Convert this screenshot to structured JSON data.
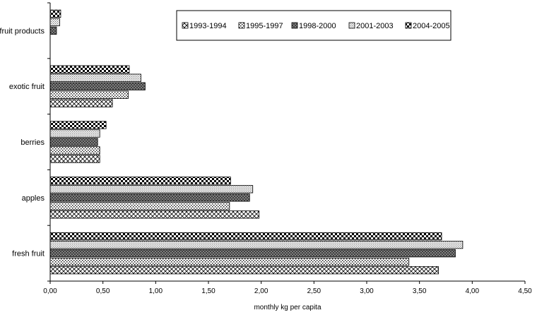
{
  "chart_data": {
    "type": "bar",
    "orientation": "horizontal",
    "categories": [
      "fruit products",
      "exotic fruit",
      "berries",
      "apples",
      "fresh fruit"
    ],
    "series": [
      {
        "name": "1993-1994",
        "values": [
          null,
          0.59,
          0.47,
          1.98,
          3.68
        ]
      },
      {
        "name": "1995-1997",
        "values": [
          null,
          0.74,
          0.47,
          1.7,
          3.4
        ]
      },
      {
        "name": "1998-2000",
        "values": [
          0.06,
          0.9,
          0.45,
          1.89,
          3.84
        ]
      },
      {
        "name": "2001-2003",
        "values": [
          0.09,
          0.86,
          0.47,
          1.92,
          3.91
        ]
      },
      {
        "name": "2004-2005",
        "values": [
          0.1,
          0.75,
          0.53,
          1.71,
          3.71
        ]
      }
    ],
    "xlabel": "monthly kg per capita",
    "xlim": [
      0,
      4.5
    ],
    "xticks": [
      "0,00",
      "0,50",
      "1,00",
      "1,50",
      "2,00",
      "2,50",
      "3,00",
      "3,50",
      "4,00",
      "4,50"
    ],
    "legend_position": "top-right",
    "grid": false
  }
}
